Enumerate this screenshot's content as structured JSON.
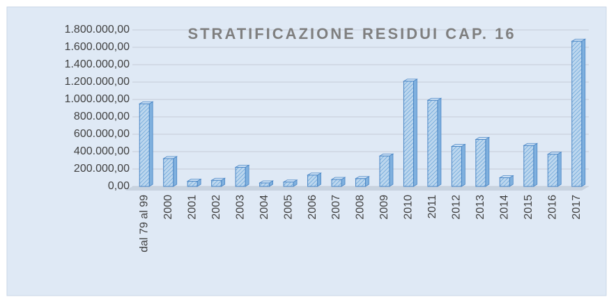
{
  "chart_data": {
    "type": "bar",
    "title": "STRATIFICAZIONE RESIDUI CAP. 16",
    "categories": [
      "dal 79 al 99",
      "2000",
      "2001",
      "2002",
      "2003",
      "2004",
      "2005",
      "2006",
      "2007",
      "2008",
      "2009",
      "2010",
      "2011",
      "2012",
      "2013",
      "2014",
      "2015",
      "2016",
      "2017"
    ],
    "values": [
      950000,
      320000,
      60000,
      70000,
      220000,
      40000,
      50000,
      130000,
      80000,
      90000,
      350000,
      1210000,
      990000,
      460000,
      540000,
      100000,
      470000,
      370000,
      1670000
    ],
    "color": "#9dc3e6",
    "ylim": [
      0,
      1800000
    ],
    "yticks": [
      {
        "value": 0,
        "label": "0,00"
      },
      {
        "value": 200000,
        "label": "200.000,00"
      },
      {
        "value": 400000,
        "label": "400.000,00"
      },
      {
        "value": 600000,
        "label": "600.000,00"
      },
      {
        "value": 800000,
        "label": "800.000,00"
      },
      {
        "value": 1000000,
        "label": "1.000.000,00"
      },
      {
        "value": 1200000,
        "label": "1.200.000,00"
      },
      {
        "value": 1400000,
        "label": "1.400.000,00"
      },
      {
        "value": 1600000,
        "label": "1.600.000,00"
      },
      {
        "value": 1800000,
        "label": "1.800.000,00"
      }
    ],
    "grid": true
  }
}
